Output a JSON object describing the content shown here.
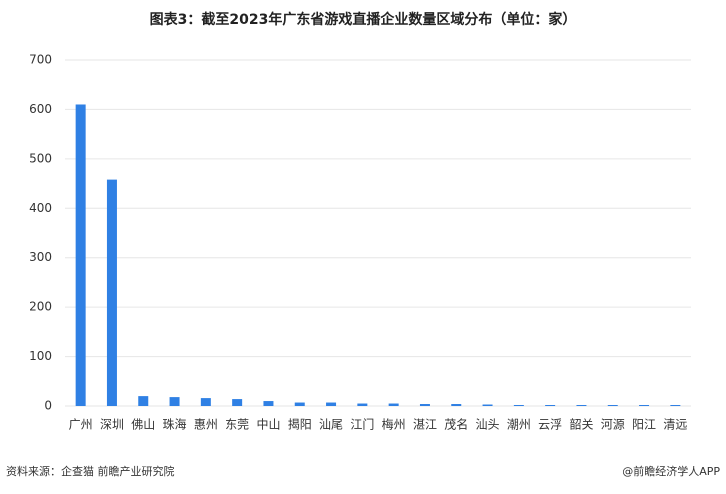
{
  "chart_data": {
    "type": "bar",
    "title": "图表3：截至2023年广东省游戏直播企业数量区域分布（单位：家）",
    "categories": [
      "广州",
      "深圳",
      "佛山",
      "珠海",
      "惠州",
      "东莞",
      "中山",
      "揭阳",
      "汕尾",
      "江门",
      "梅州",
      "湛江",
      "茂名",
      "汕头",
      "潮州",
      "云浮",
      "韶关",
      "河源",
      "阳江",
      "清远"
    ],
    "values": [
      610,
      458,
      20,
      18,
      16,
      14,
      10,
      7,
      7,
      5,
      5,
      4,
      4,
      3,
      2,
      2,
      2,
      2,
      2,
      2
    ],
    "color": "#2f80e4",
    "ylim": [
      0,
      700
    ],
    "yticks": [
      0,
      100,
      200,
      300,
      400,
      500,
      600,
      700
    ],
    "grid": true,
    "source": "资料来源：企查猫 前瞻产业研究院",
    "credit": "@前瞻经济学人APP"
  }
}
